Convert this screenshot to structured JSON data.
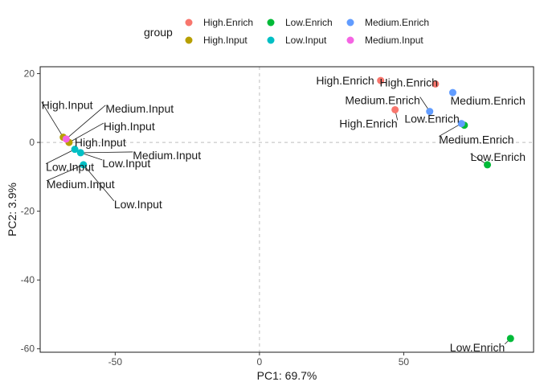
{
  "chart_data": {
    "type": "scatter",
    "xlabel": "PC1: 69.7%",
    "ylabel": "PC2: 3.9%",
    "xlim": [
      -76,
      95
    ],
    "ylim": [
      -61,
      22
    ],
    "xticks": [
      -50,
      0,
      50
    ],
    "yticks": [
      20,
      0,
      -20,
      -40,
      -60
    ],
    "reference_lines": {
      "x": 0,
      "y": 0,
      "style": "dashed"
    },
    "legend": {
      "title": "group",
      "position": "top",
      "entries": [
        {
          "label": "High.Enrich",
          "color": "#F8766D"
        },
        {
          "label": "High.Input",
          "color": "#B79F00"
        },
        {
          "label": "Low.Enrich",
          "color": "#00BA38"
        },
        {
          "label": "Low.Input",
          "color": "#00BFC4"
        },
        {
          "label": "Medium.Enrich",
          "color": "#619CFF"
        },
        {
          "label": "Medium.Input",
          "color": "#F564E3"
        }
      ]
    },
    "series": [
      {
        "name": "High.Enrich",
        "color": "#F8766D",
        "points": [
          {
            "x": 42,
            "y": 18
          },
          {
            "x": 61,
            "y": 17
          },
          {
            "x": 47,
            "y": 9.5
          }
        ]
      },
      {
        "name": "High.Input",
        "color": "#B79F00",
        "points": [
          {
            "x": -68,
            "y": 1.5
          },
          {
            "x": -66,
            "y": 0
          }
        ]
      },
      {
        "name": "Low.Enrich",
        "color": "#00BA38",
        "points": [
          {
            "x": 71,
            "y": 5
          },
          {
            "x": 79,
            "y": -6.5
          },
          {
            "x": 87,
            "y": -57
          }
        ]
      },
      {
        "name": "Low.Input",
        "color": "#00BFC4",
        "points": [
          {
            "x": -64,
            "y": -2
          },
          {
            "x": -62,
            "y": -3
          },
          {
            "x": -61,
            "y": -6.5
          }
        ]
      },
      {
        "name": "Medium.Enrich",
        "color": "#619CFF",
        "points": [
          {
            "x": 59,
            "y": 9
          },
          {
            "x": 67,
            "y": 14.5
          },
          {
            "x": 70,
            "y": 5.5
          }
        ]
      },
      {
        "name": "Medium.Input",
        "color": "#F564E3",
        "points": [
          {
            "x": -67,
            "y": 1
          }
        ]
      }
    ],
    "annotations": [
      {
        "text": "High.Enrich",
        "x": 42,
        "y": 18,
        "anchor": "end",
        "dx": -8,
        "dy": 0
      },
      {
        "text": "High.Enrich",
        "x": 61,
        "y": 17,
        "anchor": "end",
        "dx": 3,
        "dy": -2
      },
      {
        "text": "High.Enrich",
        "x": 47,
        "y": 9.5,
        "anchor": "end",
        "dx": 3,
        "dy": 17
      },
      {
        "text": "Medium.Enrich",
        "x": 59,
        "y": 9,
        "anchor": "end",
        "dx": -12,
        "dy": -14
      },
      {
        "text": "Medium.Enrich",
        "x": 67,
        "y": 14.5,
        "anchor": "start",
        "dx": -3,
        "dy": 10
      },
      {
        "text": "Medium.Enrich",
        "x": 70,
        "y": 5.5,
        "anchor": "start",
        "dx": -28,
        "dy": 20
      },
      {
        "text": "Low.Enrich",
        "x": 71,
        "y": 5,
        "anchor": "end",
        "dx": -6,
        "dy": -8
      },
      {
        "text": "Low.Enrich",
        "x": 79,
        "y": -6.5,
        "anchor": "start",
        "dx": -21,
        "dy": -10
      },
      {
        "text": "Low.Enrich",
        "x": 87,
        "y": -57,
        "anchor": "end",
        "dx": -7,
        "dy": 11
      },
      {
        "text": "High.Input",
        "x": -68,
        "y": 1.5,
        "anchor": "start",
        "dx": -27,
        "dy": -40
      },
      {
        "text": "Medium.Input",
        "x": -67,
        "y": 1,
        "anchor": "start",
        "dx": 49,
        "dy": -38
      },
      {
        "text": "High.Input",
        "x": -66,
        "y": 0,
        "anchor": "start",
        "dx": 43,
        "dy": -20
      },
      {
        "text": "High.Input",
        "x": -66,
        "y": 0,
        "anchor": "start",
        "dx": 7,
        "dy": 0
      },
      {
        "text": "Medium.Input",
        "x": -62,
        "y": -3,
        "anchor": "start",
        "dx": 65,
        "dy": 3
      },
      {
        "text": "Low.Input",
        "x": -62,
        "y": -3,
        "anchor": "start",
        "dx": 27,
        "dy": 13
      },
      {
        "text": "Low.Input",
        "x": -64,
        "y": -2,
        "anchor": "start",
        "dx": -36,
        "dy": 22
      },
      {
        "text": "Medium.Input",
        "x": -61,
        "y": -6.5,
        "anchor": "start",
        "dx": -46,
        "dy": 24
      },
      {
        "text": "Low.Input",
        "x": -61,
        "y": -6.5,
        "anchor": "start",
        "dx": 38,
        "dy": 49
      }
    ]
  }
}
